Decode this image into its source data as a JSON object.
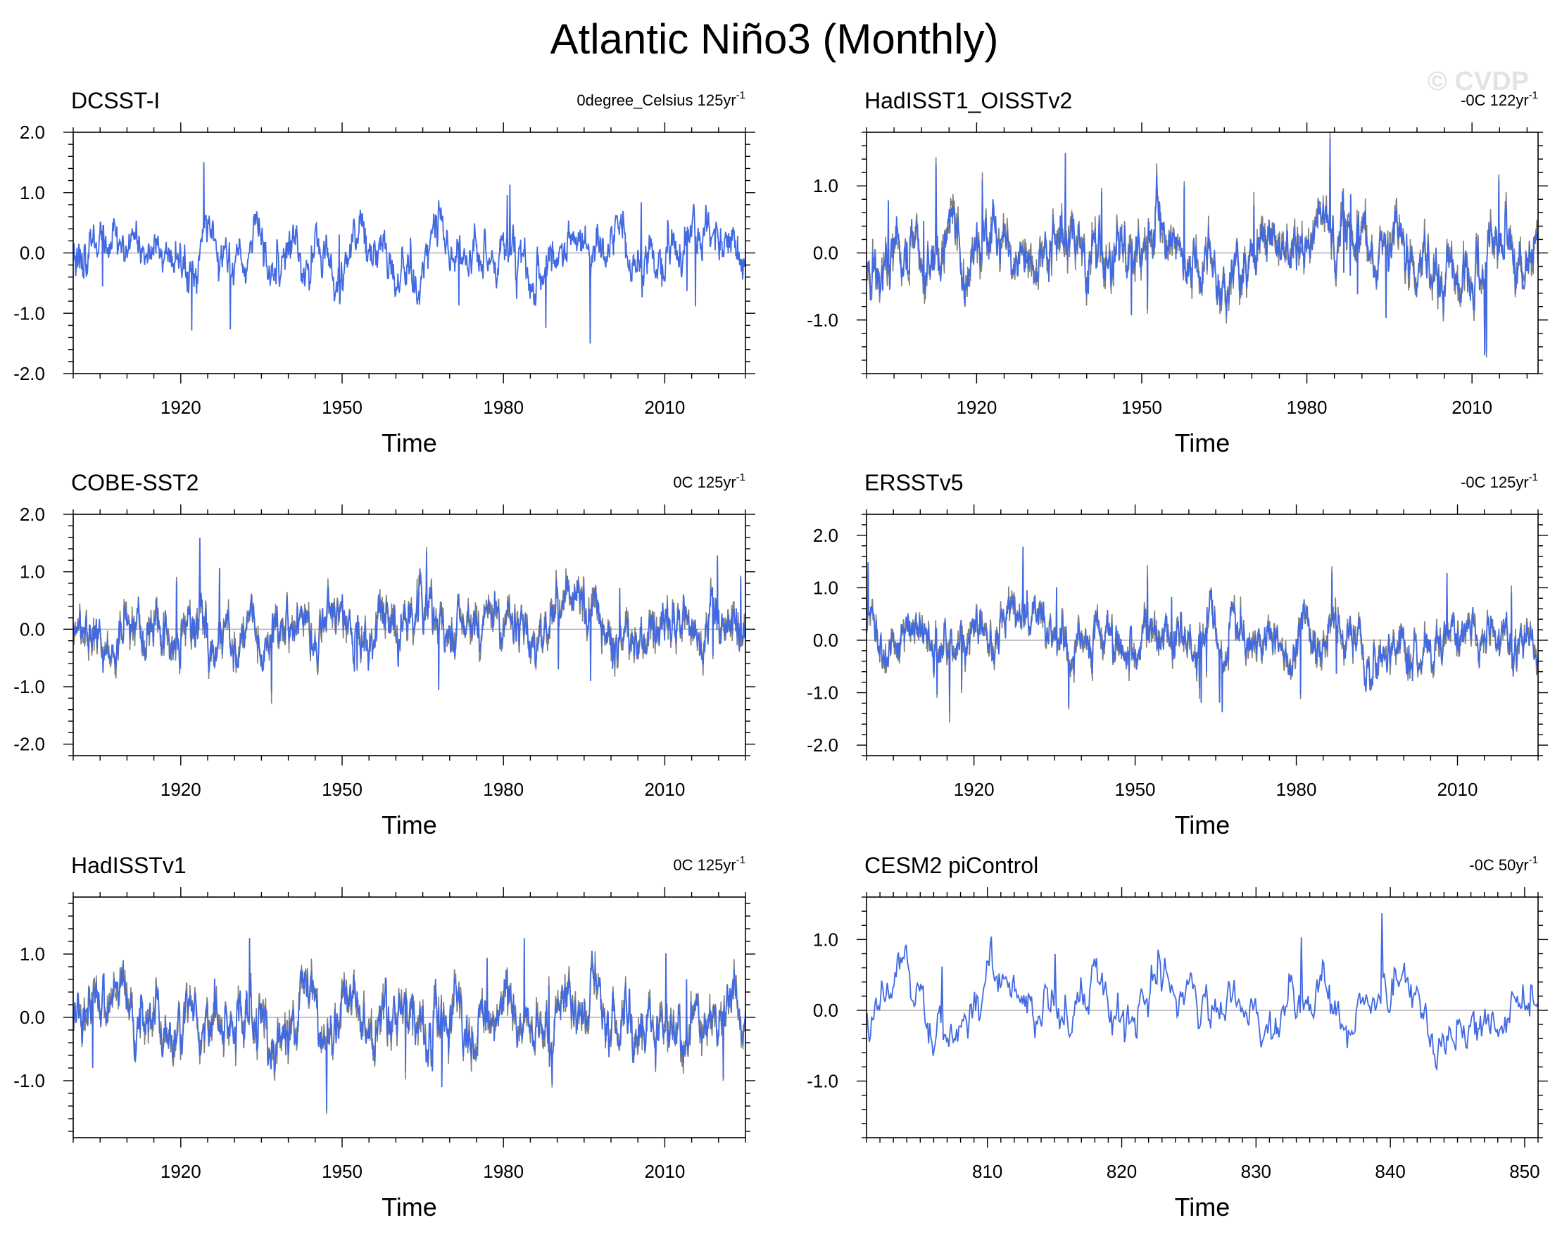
{
  "figure": {
    "title": "Atlantic Niño3 (Monthly)",
    "watermark": "© CVDP"
  },
  "colors": {
    "primary_line": "#4169e1",
    "reference_line": "#7f7f7f",
    "zero_line": "#b0b0b0",
    "axis": "#000000"
  },
  "chart_data": [
    {
      "type": "line",
      "title": "DCSST-I",
      "trend_label": "0degree_Celsius 125yr",
      "trend_sup": "-1",
      "xlabel": "Time",
      "xlim": [
        1900,
        2025
      ],
      "xticks": [
        1920,
        1950,
        1980,
        2010
      ],
      "ylim": [
        -2.0,
        2.0
      ],
      "yticks": [
        -2.0,
        -1.0,
        0.0,
        1.0,
        2.0
      ],
      "ytick_labels": [
        "-2.0",
        "-1.0",
        "0.0",
        "1.0",
        "2.0"
      ],
      "amplitude": 0.42,
      "seed": 11,
      "has_reference_series": false,
      "series": [
        {
          "values_summary": "monthly anomaly, approx range -1.6 to 1.7"
        }
      ]
    },
    {
      "type": "line",
      "title": "HadISST1_OISSTv2",
      "trend_label": "-0C 122yr",
      "trend_sup": "-1",
      "xlabel": "Time",
      "xlim": [
        1900,
        2022
      ],
      "xticks": [
        1920,
        1950,
        1980,
        2010
      ],
      "ylim": [
        -1.8,
        1.8
      ],
      "yticks": [
        -1.0,
        0.0,
        1.0
      ],
      "ytick_labels": [
        "-1.0",
        "0.0",
        "1.0"
      ],
      "amplitude": 0.45,
      "seed": 23,
      "has_reference_series": true,
      "series": [
        {
          "values_summary": "monthly anomaly, approx range -1.6 to 1.6"
        }
      ]
    },
    {
      "type": "line",
      "title": "COBE-SST2",
      "trend_label": "0C 125yr",
      "trend_sup": "-1",
      "xlabel": "Time",
      "xlim": [
        1900,
        2025
      ],
      "xticks": [
        1920,
        1950,
        1980,
        2010
      ],
      "ylim": [
        -2.2,
        2.0
      ],
      "yticks": [
        -2.0,
        -1.0,
        0.0,
        1.0,
        2.0
      ],
      "ytick_labels": [
        "-2.0",
        "-1.0",
        "0.0",
        "1.0",
        "2.0"
      ],
      "amplitude": 0.45,
      "seed": 37,
      "has_reference_series": true,
      "series": [
        {
          "values_summary": "monthly anomaly, approx range -1.9 to 1.9"
        }
      ]
    },
    {
      "type": "line",
      "title": "ERSSTv5",
      "trend_label": "-0C 125yr",
      "trend_sup": "-1",
      "xlabel": "Time",
      "xlim": [
        1900,
        2025
      ],
      "xticks": [
        1920,
        1950,
        1980,
        2010
      ],
      "ylim": [
        -2.2,
        2.4
      ],
      "yticks": [
        -2.0,
        -1.0,
        0.0,
        1.0,
        2.0
      ],
      "ytick_labels": [
        "-2.0",
        "-1.0",
        "0.0",
        "1.0",
        "2.0"
      ],
      "amplitude": 0.45,
      "seed": 41,
      "has_reference_series": true,
      "series": [
        {
          "values_summary": "monthly anomaly, approx range -1.9 to 2.1"
        }
      ]
    },
    {
      "type": "line",
      "title": "HadISSTv1",
      "trend_label": "0C 125yr",
      "trend_sup": "-1",
      "xlabel": "Time",
      "xlim": [
        1900,
        2025
      ],
      "xticks": [
        1920,
        1950,
        1980,
        2010
      ],
      "ylim": [
        -1.9,
        1.9
      ],
      "yticks": [
        -1.0,
        0.0,
        1.0
      ],
      "ytick_labels": [
        "-1.0",
        "0.0",
        "1.0"
      ],
      "amplitude": 0.45,
      "seed": 53,
      "has_reference_series": true,
      "series": [
        {
          "values_summary": "monthly anomaly, approx range -1.6 to 1.6"
        }
      ]
    },
    {
      "type": "line",
      "title": "CESM2 piControl",
      "trend_label": "-0C 50yr",
      "trend_sup": "-1",
      "xlabel": "Time",
      "xlim": [
        801,
        851
      ],
      "xticks": [
        810,
        820,
        830,
        840,
        850
      ],
      "ylim": [
        -1.8,
        1.6
      ],
      "yticks": [
        -1.0,
        0.0,
        1.0
      ],
      "ytick_labels": [
        "-1.0",
        "0.0",
        "1.0"
      ],
      "amplitude": 0.42,
      "seed": 67,
      "has_reference_series": false,
      "series": [
        {
          "values_summary": "monthly anomaly, approx range -1.1 to 1.5"
        }
      ]
    }
  ]
}
